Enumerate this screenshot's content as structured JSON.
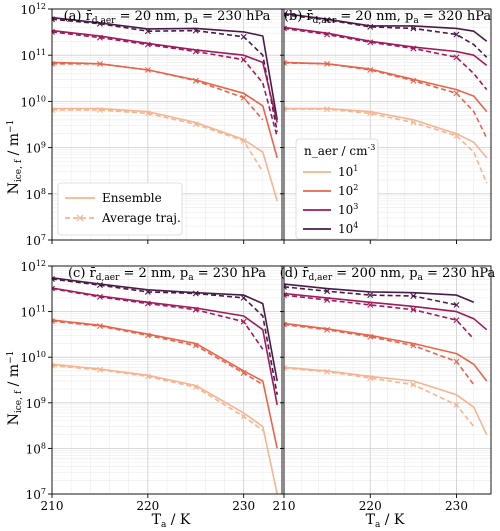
{
  "figure": {
    "xlabel": "T_a / K",
    "ylabel": "N_ice,f / m^-1"
  },
  "legends": {
    "style": {
      "entries": [
        {
          "label": "Ensemble",
          "dash": "solid"
        },
        {
          "label": "Average traj.",
          "dash": "dashed"
        }
      ]
    },
    "concentration": {
      "title": "n_aer / cm^-3",
      "entries": [
        {
          "label": "10^1",
          "color": "#f6b48f"
        },
        {
          "label": "10^2",
          "color": "#e8644a"
        },
        {
          "label": "10^3",
          "color": "#a11a5b"
        },
        {
          "label": "10^4",
          "color": "#491c47"
        }
      ]
    }
  },
  "colors": {
    "10^1": "#f6b48f",
    "10^2": "#e8644a",
    "10^3": "#a11a5b",
    "10^4": "#491c47"
  },
  "chart_data": [
    {
      "type": "line",
      "panel": "a",
      "title": "(a) r̄_d,aer = 20 nm, p_a = 230 hPa",
      "xlim": [
        210,
        234
      ],
      "ylim": [
        10000000.0,
        1000000000000.0
      ],
      "yscale": "log",
      "xticks": [
        210,
        220,
        230
      ],
      "yticks": [
        "10^7",
        "10^8",
        "10^9",
        "10^10",
        "10^11",
        "10^12"
      ],
      "series": [
        {
          "name": "10^4",
          "kind": "Ensemble",
          "x": [
            210,
            215,
            220,
            225,
            230,
            232,
            233.5
          ],
          "y": [
            650000000000.0,
            500000000000.0,
            370000000000.0,
            380000000000.0,
            320000000000.0,
            260000000000.0,
            4000000000.0
          ]
        },
        {
          "name": "10^4",
          "kind": "Average traj.",
          "x": [
            210,
            215,
            220,
            225,
            230,
            232,
            233.5
          ],
          "y": [
            600000000000.0,
            480000000000.0,
            330000000000.0,
            340000000000.0,
            250000000000.0,
            100000000000.0,
            2200000000.0
          ]
        },
        {
          "name": "10^3",
          "kind": "Ensemble",
          "x": [
            210,
            215,
            220,
            225,
            230,
            232,
            233.5
          ],
          "y": [
            340000000000.0,
            260000000000.0,
            180000000000.0,
            130000000000.0,
            100000000000.0,
            70000000000.0,
            3500000000.0
          ]
        },
        {
          "name": "10^3",
          "kind": "Average traj.",
          "x": [
            210,
            215,
            220,
            225,
            230,
            232,
            233.5
          ],
          "y": [
            320000000000.0,
            240000000000.0,
            170000000000.0,
            120000000000.0,
            80000000000.0,
            25000000000.0,
            1700000000.0
          ]
        },
        {
          "name": "10^2",
          "kind": "Ensemble",
          "x": [
            210,
            215,
            220,
            225,
            230,
            232,
            233.5
          ],
          "y": [
            70000000000.0,
            65000000000.0,
            48000000000.0,
            29000000000.0,
            15000000000.0,
            8000000000.0,
            600000000.0
          ]
        },
        {
          "name": "10^2",
          "kind": "Average traj.",
          "x": [
            210,
            215,
            220,
            225,
            230,
            232
          ],
          "y": [
            65000000000.0,
            65000000000.0,
            48000000000.0,
            28000000000.0,
            12000000000.0,
            4000000000.0
          ]
        },
        {
          "name": "10^1",
          "kind": "Ensemble",
          "x": [
            210,
            215,
            220,
            225,
            230,
            232,
            233.5
          ],
          "y": [
            7000000000.0,
            7000000000.0,
            6000000000.0,
            3500000000.0,
            1500000000.0,
            800000000.0,
            70000000.0
          ]
        },
        {
          "name": "10^1",
          "kind": "Average traj.",
          "x": [
            210,
            215,
            220,
            225,
            230,
            232
          ],
          "y": [
            6500000000.0,
            6500000000.0,
            5500000000.0,
            3200000000.0,
            1400000000.0,
            300000000.0
          ]
        }
      ]
    },
    {
      "type": "line",
      "panel": "b",
      "title": "(b) r̄_d,aer = 20 nm, p_a = 320 hPa",
      "xlim": [
        210,
        234
      ],
      "ylim": [
        10000000.0,
        1000000000000.0
      ],
      "yscale": "log",
      "xticks": [
        210,
        220,
        230
      ],
      "yticks": [
        "10^7",
        "10^8",
        "10^9",
        "10^10",
        "10^11",
        "10^12"
      ],
      "series": [
        {
          "name": "10^4",
          "kind": "Ensemble",
          "x": [
            210,
            215,
            220,
            225,
            230,
            232,
            233.5
          ],
          "y": [
            800000000000.0,
            600000000000.0,
            430000000000.0,
            430000000000.0,
            380000000000.0,
            330000000000.0,
            200000000000.0
          ]
        },
        {
          "name": "10^4",
          "kind": "Average traj.",
          "x": [
            210,
            215,
            220,
            225,
            230,
            232,
            233.5
          ],
          "y": [
            750000000000.0,
            580000000000.0,
            410000000000.0,
            380000000000.0,
            280000000000.0,
            170000000000.0,
            90000000000.0
          ]
        },
        {
          "name": "10^3",
          "kind": "Ensemble",
          "x": [
            210,
            215,
            220,
            225,
            230,
            232,
            233.5
          ],
          "y": [
            400000000000.0,
            300000000000.0,
            200000000000.0,
            150000000000.0,
            120000000000.0,
            100000000000.0,
            60000000000.0
          ]
        },
        {
          "name": "10^3",
          "kind": "Average traj.",
          "x": [
            210,
            215,
            220,
            225,
            230,
            232,
            233.5
          ],
          "y": [
            380000000000.0,
            280000000000.0,
            190000000000.0,
            140000000000.0,
            90000000000.0,
            40000000000.0,
            18000000000.0
          ]
        },
        {
          "name": "10^2",
          "kind": "Ensemble",
          "x": [
            210,
            215,
            220,
            225,
            230,
            232,
            233.5
          ],
          "y": [
            70000000000.0,
            65000000000.0,
            50000000000.0,
            30000000000.0,
            18000000000.0,
            13000000000.0,
            6000000000.0
          ]
        },
        {
          "name": "10^2",
          "kind": "Average traj.",
          "x": [
            210,
            215,
            220,
            225,
            230,
            232,
            233.5
          ],
          "y": [
            68000000000.0,
            65000000000.0,
            48000000000.0,
            28000000000.0,
            15000000000.0,
            6000000000.0,
            1600000000.0
          ]
        },
        {
          "name": "10^1",
          "kind": "Ensemble",
          "x": [
            210,
            215,
            220,
            225,
            230,
            232,
            233.5
          ],
          "y": [
            7000000000.0,
            7000000000.0,
            6000000000.0,
            4000000000.0,
            2000000000.0,
            1300000000.0,
            600000000.0
          ]
        },
        {
          "name": "10^1",
          "kind": "Average traj.",
          "x": [
            210,
            215,
            220,
            225,
            230,
            232,
            233.5
          ],
          "y": [
            6800000000.0,
            6800000000.0,
            5500000000.0,
            3500000000.0,
            1800000000.0,
            800000000.0,
            170000000.0
          ]
        }
      ]
    },
    {
      "type": "line",
      "panel": "c",
      "title": "(c) r̄_d,aer = 2 nm, p_a = 230 hPa",
      "xlim": [
        210,
        234
      ],
      "ylim": [
        10000000.0,
        1000000000000.0
      ],
      "yscale": "log",
      "xticks": [
        210,
        220,
        230
      ],
      "xticklabels": [
        "210",
        "220",
        "230"
      ],
      "yticks": [
        "10^7",
        "10^8",
        "10^9",
        "10^10",
        "10^11",
        "10^12"
      ],
      "series": [
        {
          "name": "10^4",
          "kind": "Ensemble",
          "x": [
            210,
            215,
            220,
            225,
            230,
            232,
            233.5
          ],
          "y": [
            550000000000.0,
            400000000000.0,
            300000000000.0,
            260000000000.0,
            230000000000.0,
            150000000000.0,
            3000000000.0
          ]
        },
        {
          "name": "10^4",
          "kind": "Average traj.",
          "x": [
            210,
            215,
            220,
            225,
            230,
            232,
            233.5
          ],
          "y": [
            520000000000.0,
            380000000000.0,
            270000000000.0,
            250000000000.0,
            200000000000.0,
            80000000000.0,
            1500000000.0
          ]
        },
        {
          "name": "10^3",
          "kind": "Ensemble",
          "x": [
            210,
            215,
            220,
            225,
            230,
            232,
            233.5
          ],
          "y": [
            330000000000.0,
            220000000000.0,
            160000000000.0,
            120000000000.0,
            80000000000.0,
            40000000000.0,
            900000000.0
          ]
        },
        {
          "name": "10^3",
          "kind": "Average traj.",
          "x": [
            210,
            215,
            220,
            225,
            230,
            232
          ],
          "y": [
            320000000000.0,
            210000000000.0,
            150000000000.0,
            110000000000.0,
            60000000000.0,
            15000000000.0
          ]
        },
        {
          "name": "10^2",
          "kind": "Ensemble",
          "x": [
            210,
            215,
            220,
            225,
            230,
            232,
            233.5
          ],
          "y": [
            65000000000.0,
            50000000000.0,
            32000000000.0,
            20000000000.0,
            5000000000.0,
            3000000000.0,
            100000000.0
          ]
        },
        {
          "name": "10^2",
          "kind": "Average traj.",
          "x": [
            210,
            215,
            220,
            225,
            230,
            232
          ],
          "y": [
            62000000000.0,
            48000000000.0,
            30000000000.0,
            18000000000.0,
            4500000000.0,
            2500000000.0
          ]
        },
        {
          "name": "10^1",
          "kind": "Ensemble",
          "x": [
            210,
            215,
            220,
            225,
            230,
            232,
            233.5
          ],
          "y": [
            7000000000.0,
            5500000000.0,
            4000000000.0,
            2400000000.0,
            600000000.0,
            300000000.0,
            10000000.0
          ]
        },
        {
          "name": "10^1",
          "kind": "Average traj.",
          "x": [
            210,
            215,
            220,
            225,
            230,
            232
          ],
          "y": [
            6500000000.0,
            5300000000.0,
            3800000000.0,
            2200000000.0,
            500000000.0,
            250000000.0
          ]
        }
      ]
    },
    {
      "type": "line",
      "panel": "d",
      "title": "(d) r̄_d,aer = 200 nm, p_a = 230 hPa",
      "xlim": [
        210,
        234
      ],
      "ylim": [
        10000000.0,
        1000000000000.0
      ],
      "yscale": "log",
      "xticks": [
        210,
        220,
        230
      ],
      "xticklabels": [
        "210",
        "220",
        "230"
      ],
      "yticks": [
        "10^7",
        "10^8",
        "10^9",
        "10^10",
        "10^11",
        "10^12"
      ],
      "series": [
        {
          "name": "10^4",
          "kind": "Ensemble",
          "x": [
            210,
            215,
            220,
            225,
            230,
            232
          ],
          "y": [
            400000000000.0,
            320000000000.0,
            270000000000.0,
            260000000000.0,
            230000000000.0,
            160000000000.0
          ]
        },
        {
          "name": "10^4",
          "kind": "Average traj.",
          "x": [
            210,
            215,
            220,
            225,
            230
          ],
          "y": [
            350000000000.0,
            280000000000.0,
            230000000000.0,
            220000000000.0,
            140000000000.0
          ]
        },
        {
          "name": "10^3",
          "kind": "Ensemble",
          "x": [
            210,
            215,
            220,
            225,
            230,
            232,
            233.5
          ],
          "y": [
            250000000000.0,
            200000000000.0,
            160000000000.0,
            130000000000.0,
            100000000000.0,
            70000000000.0,
            40000000000.0
          ]
        },
        {
          "name": "10^3",
          "kind": "Average traj.",
          "x": [
            210,
            215,
            220,
            225,
            230,
            232
          ],
          "y": [
            230000000000.0,
            180000000000.0,
            140000000000.0,
            110000000000.0,
            65000000000.0,
            25000000000.0
          ]
        },
        {
          "name": "10^2",
          "kind": "Ensemble",
          "x": [
            210,
            215,
            220,
            225,
            230,
            232,
            233.5
          ],
          "y": [
            55000000000.0,
            42000000000.0,
            30000000000.0,
            20000000000.0,
            12000000000.0,
            7000000000.0,
            3000000000.0
          ]
        },
        {
          "name": "10^2",
          "kind": "Average traj.",
          "x": [
            210,
            215,
            220,
            225,
            230,
            232
          ],
          "y": [
            52000000000.0,
            40000000000.0,
            28000000000.0,
            18000000000.0,
            8000000000.0,
            2500000000.0
          ]
        },
        {
          "name": "10^1",
          "kind": "Ensemble",
          "x": [
            210,
            215,
            220,
            225,
            230,
            232,
            233.5
          ],
          "y": [
            6000000000.0,
            5000000000.0,
            3800000000.0,
            3000000000.0,
            1500000000.0,
            800000000.0,
            200000000.0
          ]
        },
        {
          "name": "10^1",
          "kind": "Average traj.",
          "x": [
            210,
            215,
            220,
            225,
            230,
            232
          ],
          "y": [
            5800000000.0,
            4800000000.0,
            3500000000.0,
            2500000000.0,
            900000000.0,
            300000000.0
          ]
        }
      ]
    }
  ]
}
